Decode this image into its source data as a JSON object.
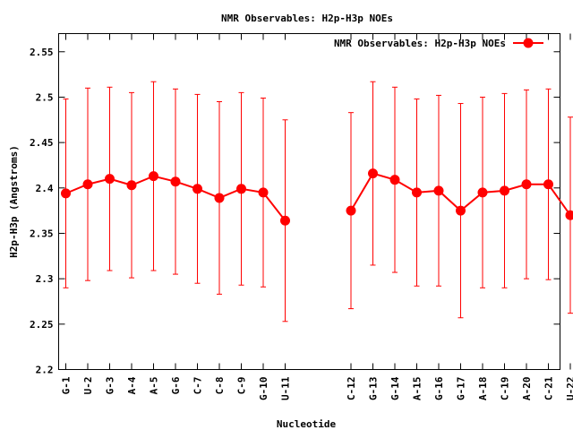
{
  "chart_data": {
    "type": "line",
    "title": "NMR Observables: H2p-H3p NOEs",
    "xlabel": "Nucleotide",
    "ylabel": "H2p-H3p (Angstroms)",
    "ylim": [
      2.2,
      2.57
    ],
    "yticks": [
      "2.2",
      "2.25",
      "2.3",
      "2.35",
      "2.4",
      "2.45",
      "2.5",
      "2.55"
    ],
    "categories": [
      "G-1",
      "U-2",
      "G-3",
      "A-4",
      "A-5",
      "G-6",
      "C-7",
      "C-8",
      "C-9",
      "G-10",
      "U-11",
      "C-12",
      "G-13",
      "G-14",
      "A-15",
      "G-16",
      "G-17",
      "A-18",
      "C-19",
      "A-20",
      "C-21",
      "U-22"
    ],
    "legend_position": "top-right",
    "color": "#ff0000",
    "series": [
      {
        "name": "NMR Observables: H2p-H3p NOEs",
        "segments": [
          {
            "categories": [
              "G-1",
              "U-2",
              "G-3",
              "A-4",
              "A-5",
              "G-6",
              "C-7",
              "C-8",
              "C-9",
              "G-10",
              "U-11"
            ],
            "values": [
              2.394,
              2.404,
              2.41,
              2.403,
              2.413,
              2.407,
              2.399,
              2.389,
              2.399,
              2.395,
              2.364
            ],
            "errors": [
              0.104,
              0.106,
              0.101,
              0.102,
              0.104,
              0.102,
              0.104,
              0.106,
              0.106,
              0.104,
              0.111
            ]
          },
          {
            "categories": [
              "C-12",
              "G-13",
              "G-14",
              "A-15",
              "G-16",
              "G-17",
              "A-18",
              "C-19",
              "A-20",
              "C-21",
              "U-22"
            ],
            "values": [
              2.375,
              2.416,
              2.409,
              2.395,
              2.397,
              2.375,
              2.395,
              2.397,
              2.404,
              2.404,
              2.37
            ],
            "errors": [
              0.108,
              0.101,
              0.102,
              0.103,
              0.105,
              0.118,
              0.105,
              0.107,
              0.104,
              0.105,
              0.108
            ]
          }
        ]
      }
    ]
  }
}
